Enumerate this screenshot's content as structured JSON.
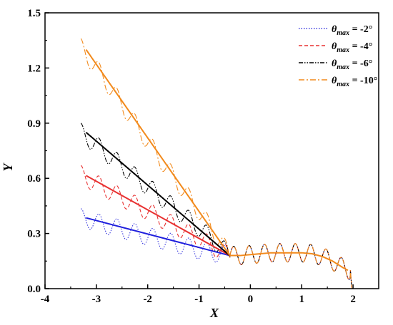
{
  "chart_data": {
    "type": "line",
    "xlabel": "X",
    "ylabel": "Y",
    "xlim": [
      -4,
      2.5
    ],
    "ylim": [
      0,
      1.5
    ],
    "x_ticks": [
      -4,
      -3,
      -2,
      -1,
      0,
      1,
      2
    ],
    "y_ticks": [
      0.0,
      0.3,
      0.6,
      0.9,
      1.2,
      1.5
    ],
    "x_tick_labels": [
      "-4",
      "-3",
      "-2",
      "-1",
      "0",
      "1",
      "2"
    ],
    "y_tick_labels": [
      "0.0",
      "0.3",
      "0.6",
      "0.9",
      "1.2",
      "1.5"
    ],
    "grid": false,
    "legend_position": "top-right",
    "legend": [
      {
        "prefix": "θ",
        "sub": "max",
        "suffix": " = -2°",
        "color": "#3333dd",
        "dash": "dotted"
      },
      {
        "prefix": "θ",
        "sub": "max",
        "suffix": " = -4°",
        "color": "#e83030",
        "dash": "dashed"
      },
      {
        "prefix": "θ",
        "sub": "max",
        "suffix": " = -6°",
        "color": "#000000",
        "dash": "dashdotdot"
      },
      {
        "prefix": "θ",
        "sub": "max",
        "suffix": " = -10°",
        "color": "#f28a1c",
        "dash": "dashdot"
      }
    ],
    "oscillating_series": [
      {
        "name": "θmax = -2°",
        "color": "#3333dd",
        "dash": "dotted",
        "x": [
          -3.3,
          -3.2,
          -3.0,
          -2.8,
          -2.6,
          -2.4,
          -2.2,
          -2.0,
          -1.8,
          -1.6,
          -1.4,
          -1.2,
          -1.0,
          -0.8,
          -0.6,
          -0.4
        ],
        "base": [
          0.385,
          0.38,
          0.36,
          0.345,
          0.33,
          0.315,
          0.3,
          0.285,
          0.27,
          0.255,
          0.24,
          0.225,
          0.21,
          0.2,
          0.19,
          0.18
        ],
        "amplitude": 0.05,
        "period": 0.35
      },
      {
        "name": "θmax = -4°",
        "color": "#e83030",
        "dash": "dashed",
        "x": [
          -3.3,
          -3.0,
          -2.6,
          -2.2,
          -1.8,
          -1.4,
          -1.0,
          -0.6,
          -0.4
        ],
        "base": [
          0.62,
          0.57,
          0.51,
          0.45,
          0.39,
          0.33,
          0.27,
          0.21,
          0.18
        ],
        "amplitude": 0.05,
        "period": 0.35
      },
      {
        "name": "θmax = -6°",
        "color": "#000000",
        "dash": "dashdotdot",
        "x": [
          -3.3,
          -3.0,
          -2.6,
          -2.2,
          -1.8,
          -1.4,
          -1.0,
          -0.6,
          -0.4
        ],
        "base": [
          0.85,
          0.78,
          0.69,
          0.6,
          0.51,
          0.42,
          0.33,
          0.235,
          0.18
        ],
        "amplitude": 0.05,
        "period": 0.35
      },
      {
        "name": "θmax = -10°",
        "color": "#f28a1c",
        "dash": "dashdot",
        "x": [
          -3.3,
          -3.0,
          -2.6,
          -2.2,
          -1.8,
          -1.4,
          -1.0,
          -0.6,
          -0.4
        ],
        "base": [
          1.31,
          1.2,
          1.04,
          0.88,
          0.72,
          0.57,
          0.42,
          0.265,
          0.18
        ],
        "amplitude": 0.05,
        "period": 0.35
      }
    ],
    "mean_lines": [
      {
        "color": "#1f1fdd",
        "x": [
          -3.2,
          -0.4
        ],
        "y": [
          0.385,
          0.18
        ]
      },
      {
        "color": "#e83030",
        "x": [
          -3.2,
          -0.4
        ],
        "y": [
          0.615,
          0.18
        ]
      },
      {
        "color": "#000000",
        "x": [
          -3.2,
          -0.4
        ],
        "y": [
          0.85,
          0.18
        ]
      },
      {
        "color": "#f28a1c",
        "x": [
          -3.2,
          -0.4
        ],
        "y": [
          1.3,
          0.18
        ]
      }
    ],
    "shared_tail": {
      "mean": {
        "color": "#f28a1c",
        "x": [
          -0.4,
          -0.2,
          0.0,
          0.2,
          0.4,
          0.6,
          0.8,
          1.0,
          1.2,
          1.4,
          1.6,
          1.8,
          1.9
        ],
        "y": [
          0.18,
          0.18,
          0.185,
          0.19,
          0.195,
          0.195,
          0.195,
          0.195,
          0.19,
          0.175,
          0.15,
          0.115,
          0.1
        ]
      },
      "wave": {
        "x_start": -0.4,
        "x_end": 2.0,
        "amplitude": 0.05,
        "period": 0.3
      }
    }
  }
}
